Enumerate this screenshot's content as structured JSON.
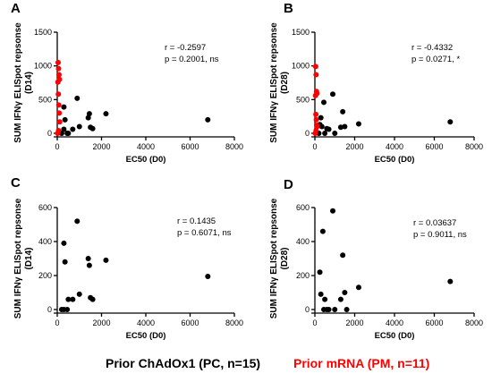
{
  "colors": {
    "pc": "#000000",
    "pm": "#ff0000"
  },
  "legend": {
    "pc_label": "Prior ChAdOx1 (PC, n=15)",
    "pm_label": "Prior mRNA (PM, n=11)"
  },
  "chart_data": [
    {
      "type": "scatter",
      "panel": "A",
      "xlabel": "EC50 (D0)",
      "ylabel_line1": "SUM IFNγ ELISpot repsonse",
      "ylabel_line2": "(D14)",
      "xlim": [
        0,
        8000
      ],
      "ylim": [
        0,
        1500
      ],
      "xticks": [
        0,
        2000,
        4000,
        6000,
        8000
      ],
      "yticks": [
        0,
        500,
        1000,
        1500
      ],
      "stat_r": "r = -0.2597",
      "stat_p": "p = 0.2001, ns",
      "series": [
        {
          "name": "PC",
          "color": "#000000",
          "x": [
            200,
            300,
            350,
            450,
            500,
            700,
            900,
            1000,
            1400,
            1450,
            1500,
            1600,
            2200,
            6800,
            300
          ],
          "y": [
            0,
            60,
            200,
            0,
            0,
            60,
            520,
            100,
            230,
            290,
            90,
            70,
            290,
            200,
            390
          ]
        },
        {
          "name": "PM",
          "color": "#ff0000",
          "x": [
            20,
            40,
            60,
            80,
            100,
            30,
            50,
            70,
            90,
            110,
            60
          ],
          "y": [
            0,
            1050,
            960,
            870,
            800,
            760,
            580,
            420,
            300,
            170,
            40
          ]
        }
      ]
    },
    {
      "type": "scatter",
      "panel": "B",
      "xlabel": "EC50 (D0)",
      "ylabel_line1": "SUM IFNγ ELISpot repsonse",
      "ylabel_line2": "(D28)",
      "xlim": [
        0,
        8000
      ],
      "ylim": [
        0,
        1500
      ],
      "xticks": [
        0,
        2000,
        4000,
        6000,
        8000
      ],
      "yticks": [
        0,
        500,
        1000,
        1500
      ],
      "stat_r": "r = -0.4332",
      "stat_p": "p = 0.0271, *",
      "series": [
        {
          "name": "PC",
          "color": "#000000",
          "x": [
            250,
            300,
            350,
            450,
            500,
            700,
            900,
            1000,
            1300,
            1400,
            1500,
            2200,
            6800,
            200,
            600
          ],
          "y": [
            130,
            230,
            100,
            460,
            0,
            60,
            580,
            0,
            90,
            320,
            100,
            140,
            170,
            0,
            70
          ]
        },
        {
          "name": "PM",
          "color": "#ff0000",
          "x": [
            20,
            40,
            60,
            80,
            100,
            30,
            50,
            70,
            90,
            110,
            60
          ],
          "y": [
            0,
            990,
            870,
            620,
            590,
            560,
            280,
            200,
            120,
            100,
            40
          ]
        }
      ]
    },
    {
      "type": "scatter",
      "panel": "C",
      "xlabel": "EC50 (D0)",
      "ylabel_line1": "SUM IFNγ ELISpot repsonse",
      "ylabel_line2": "(D14)",
      "xlim": [
        0,
        8000
      ],
      "ylim": [
        0,
        600
      ],
      "xticks": [
        0,
        2000,
        4000,
        6000,
        8000
      ],
      "yticks": [
        0,
        200,
        400,
        600
      ],
      "stat_r": "r = 0.1435",
      "stat_p": "p = 0.6071, ns",
      "series": [
        {
          "name": "PC",
          "color": "#000000",
          "x": [
            200,
            300,
            350,
            450,
            500,
            700,
            900,
            1000,
            1400,
            1450,
            1500,
            1600,
            2200,
            6800,
            300
          ],
          "y": [
            0,
            0,
            280,
            0,
            60,
            60,
            520,
            90,
            300,
            260,
            70,
            60,
            290,
            195,
            390
          ]
        }
      ]
    },
    {
      "type": "scatter",
      "panel": "D",
      "xlabel": "EC50 (D0)",
      "ylabel_line1": "SUM IFNγ ELISpot repsonse",
      "ylabel_line2": "(D28)",
      "xlim": [
        0,
        8000
      ],
      "ylim": [
        0,
        600
      ],
      "xticks": [
        0,
        2000,
        4000,
        6000,
        8000
      ],
      "yticks": [
        0,
        200,
        400,
        600
      ],
      "stat_r": "r = 0.03637",
      "stat_p": "p = 0.9011, ns",
      "series": [
        {
          "name": "PC",
          "color": "#000000",
          "x": [
            250,
            300,
            400,
            450,
            500,
            700,
            900,
            1000,
            1300,
            1400,
            1500,
            1600,
            2200,
            6800,
            600
          ],
          "y": [
            220,
            90,
            460,
            0,
            60,
            0,
            580,
            0,
            60,
            320,
            100,
            0,
            130,
            165,
            0
          ]
        }
      ]
    }
  ]
}
